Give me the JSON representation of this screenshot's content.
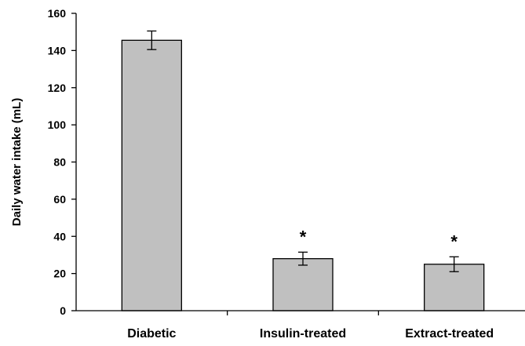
{
  "chart_data": {
    "type": "bar",
    "title": "",
    "xlabel": "",
    "ylabel": "Daily water intake (mL)",
    "categories": [
      "Diabetic",
      "Insulin-treated",
      "Extract-treated"
    ],
    "values": [
      145.5,
      28,
      25
    ],
    "errors": [
      5,
      3.5,
      4
    ],
    "annotations": [
      "",
      "*",
      "*"
    ],
    "ylim": [
      0,
      160
    ],
    "yticks": [
      "0",
      "20",
      "40",
      "60",
      "80",
      "100",
      "120",
      "140",
      "160"
    ],
    "grid": false,
    "bar_color": "#c0c0c0",
    "bar_edge_color": "#000000"
  }
}
